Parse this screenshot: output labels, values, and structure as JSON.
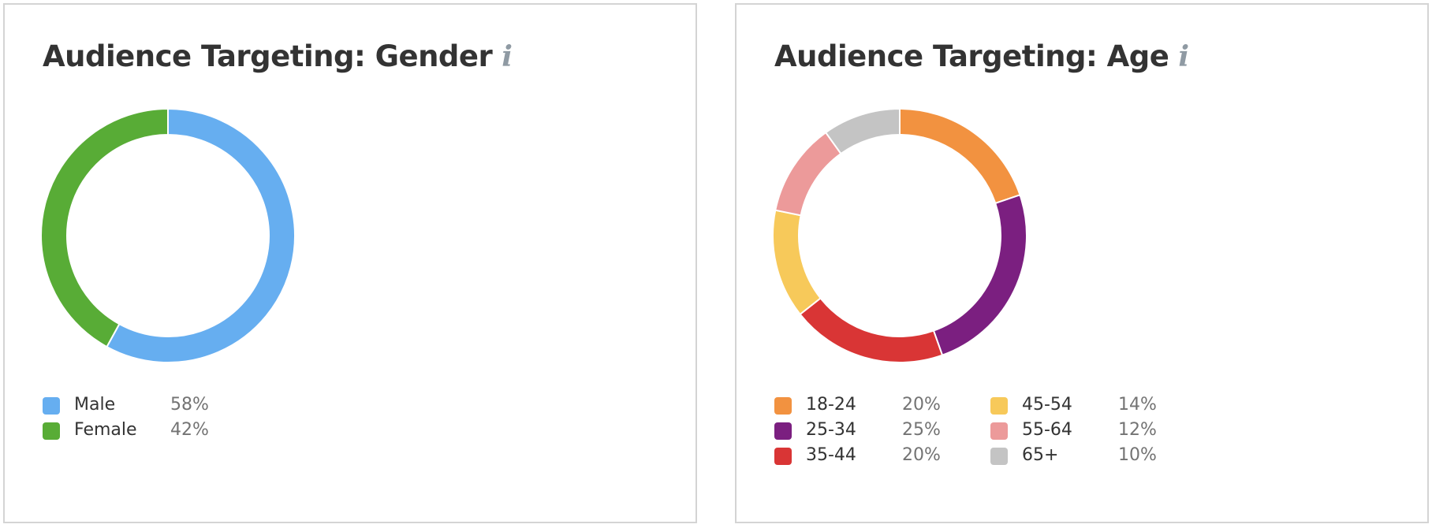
{
  "chart_data": [
    {
      "type": "pie",
      "title": "Audience Targeting: Gender",
      "info_icon": "info-icon",
      "categories": [
        "Male",
        "Female"
      ],
      "values": [
        58,
        42
      ],
      "value_labels": [
        "58%",
        "42%"
      ],
      "colors": [
        "#66aef0",
        "#58ac36"
      ],
      "legend_position": "bottom-left"
    },
    {
      "type": "pie",
      "title": "Audience Targeting: Age",
      "info_icon": "info-icon",
      "categories": [
        "18-24",
        "25-34",
        "35-44",
        "45-54",
        "55-64",
        "65+"
      ],
      "values": [
        20,
        25,
        20,
        14,
        12,
        10
      ],
      "value_labels": [
        "20%",
        "25%",
        "20%",
        "14%",
        "12%",
        "10%"
      ],
      "colors": [
        "#f29240",
        "#7b1f80",
        "#d93535",
        "#f7c95a",
        "#ec9a9a",
        "#c4c4c4"
      ],
      "legend_position": "bottom-left"
    }
  ]
}
